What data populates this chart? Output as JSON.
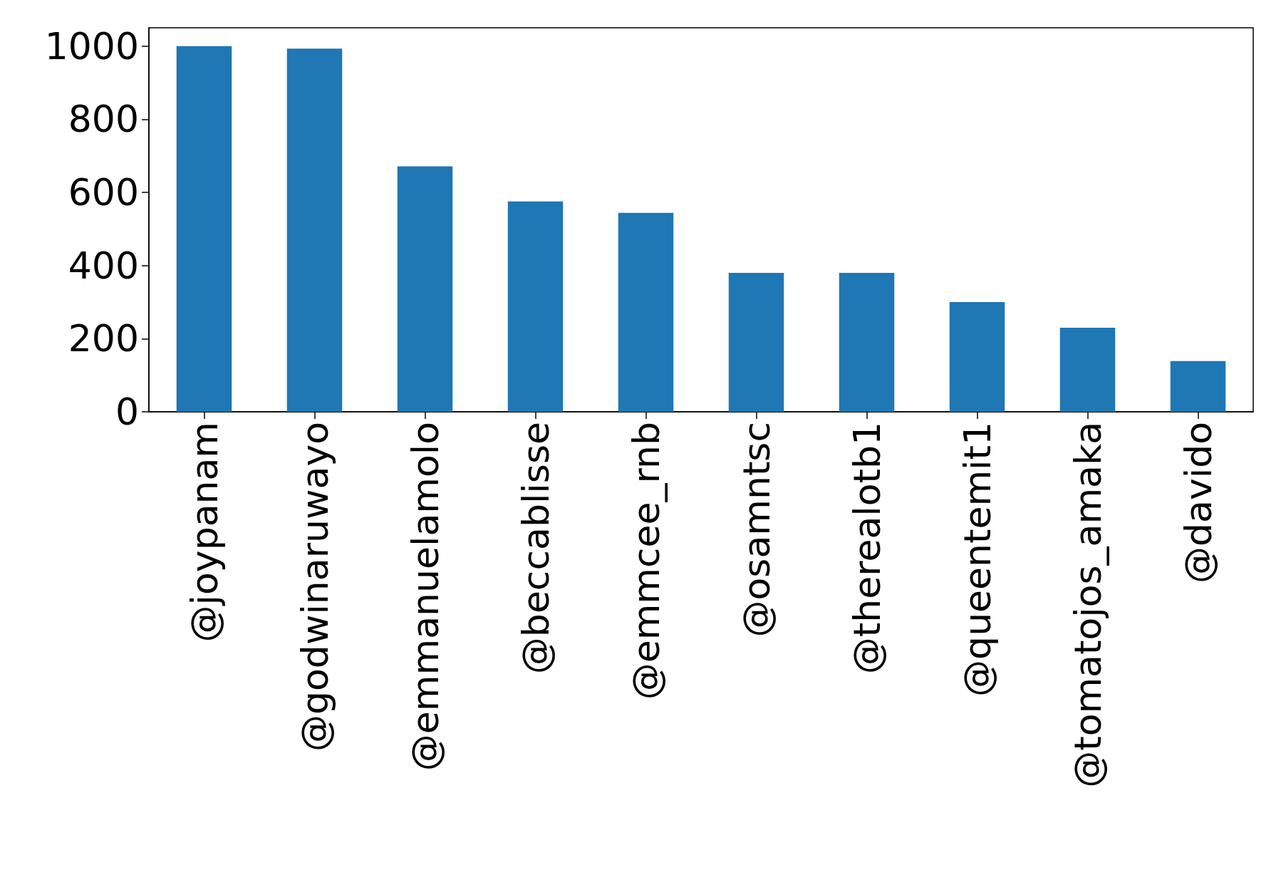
{
  "chart_data": {
    "type": "bar",
    "categories": [
      "@joypanam",
      "@godwinaruwayo",
      "@emmanuelamolo",
      "@beccablisse",
      "@emmcee_rnb",
      "@osamntsc",
      "@therealotb1",
      "@queentemit1",
      "@tomatojos_amaka",
      "@davido"
    ],
    "values": [
      1000,
      993,
      671,
      575,
      544,
      380,
      380,
      300,
      230,
      139
    ],
    "color": "#1f77b4",
    "ylim": [
      0,
      1050
    ],
    "yticks": [
      0,
      200,
      400,
      600,
      800,
      1000
    ],
    "grid": false
  }
}
